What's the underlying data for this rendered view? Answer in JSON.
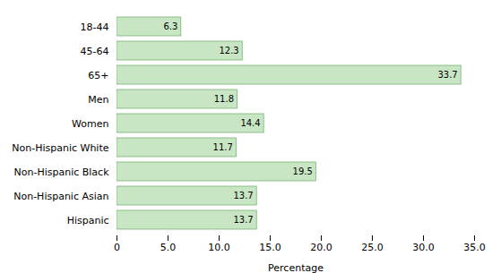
{
  "chart_data": {
    "type": "bar",
    "orientation": "horizontal",
    "categories": [
      "18-44",
      "45-64",
      "65+",
      "Men",
      "Women",
      "Non-Hispanic White",
      "Non-Hispanic Black",
      "Non-Hispanic Asian",
      "Hispanic"
    ],
    "values": [
      6.3,
      12.3,
      33.7,
      11.8,
      14.4,
      11.7,
      19.5,
      13.7,
      13.7
    ],
    "color": "#c8e6c4",
    "xlabel": "Percentage",
    "xlim": [
      0,
      35.0
    ],
    "xticks": [
      0,
      {
        "value": 5.0,
        "label": "5.0"
      },
      {
        "value": 10.0,
        "label": "10.0"
      },
      {
        "value": 15.0,
        "label": "15.0"
      },
      {
        "value": 20.0,
        "label": "20.0"
      },
      {
        "value": 25.0,
        "label": "25.0"
      },
      {
        "value": 30.0,
        "label": "30.0"
      },
      {
        "value": 35.0,
        "label": "35.0"
      }
    ],
    "data_labels": true,
    "grid": false
  }
}
